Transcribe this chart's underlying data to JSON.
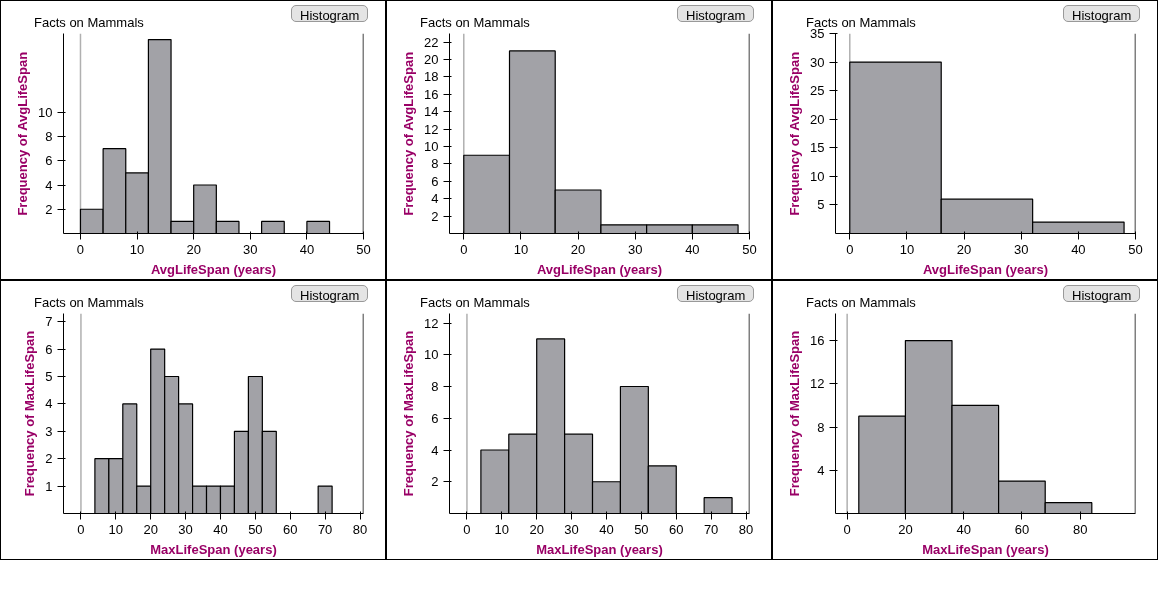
{
  "chart_data": [
    {
      "type": "histogram",
      "title": "Facts on Mammals",
      "xlabel": "AvgLifeSpan (years)",
      "ylabel": "Frequency of AvgLifeSpan",
      "annotations": [
        "Histogram"
      ],
      "color": "#a2a2a7",
      "bins": [
        0,
        4,
        8,
        12,
        16,
        20,
        24,
        28,
        32,
        36,
        40,
        44
      ],
      "values": [
        2,
        7,
        5,
        16,
        1,
        4,
        1,
        0,
        1,
        0,
        1
      ],
      "xlim": [
        -3,
        50
      ],
      "xticks": [
        0,
        10,
        20,
        30,
        40,
        50
      ],
      "ylim": [
        0,
        16.5
      ],
      "yticks": [
        2,
        4,
        6,
        8,
        10
      ],
      "ref_lines": [
        {
          "axis": "x",
          "value": 0,
          "color": "#b0b0b0"
        }
      ],
      "grid": false
    },
    {
      "type": "histogram",
      "title": "Facts on Mammals",
      "xlabel": "AvgLifeSpan (years)",
      "ylabel": "Frequency of AvgLifeSpan",
      "annotations": [
        "Histogram"
      ],
      "color": "#a2a2a7",
      "bins": [
        0,
        8,
        16,
        24,
        32,
        40,
        48
      ],
      "values": [
        9,
        21,
        5,
        1,
        1,
        1
      ],
      "xlim": [
        -2.5,
        50
      ],
      "xticks": [
        0,
        10,
        20,
        30,
        40,
        50
      ],
      "ylim": [
        0,
        23
      ],
      "yticks": [
        2,
        4,
        6,
        8,
        10,
        12,
        14,
        16,
        18,
        20,
        22
      ],
      "ref_lines": [
        {
          "axis": "x",
          "value": 0,
          "color": "#b0b0b0"
        }
      ],
      "grid": false
    },
    {
      "type": "histogram",
      "title": "Facts on Mammals",
      "xlabel": "AvgLifeSpan (years)",
      "ylabel": "Frequency of AvgLifeSpan",
      "annotations": [
        "Histogram"
      ],
      "color": "#a2a2a7",
      "bins": [
        0,
        16,
        32,
        48
      ],
      "values": [
        30,
        6,
        2
      ],
      "xlim": [
        -2.5,
        50
      ],
      "xticks": [
        0,
        10,
        20,
        30,
        40,
        50
      ],
      "ylim": [
        0,
        35
      ],
      "yticks": [
        5,
        10,
        15,
        20,
        25,
        30,
        35
      ],
      "ref_lines": [
        {
          "axis": "x",
          "value": 0,
          "color": "#b0b0b0"
        }
      ],
      "grid": false
    },
    {
      "type": "histogram",
      "title": "Facts on Mammals",
      "xlabel": "MaxLifeSpan (years)",
      "ylabel": "Frequency of MaxLifeSpan",
      "annotations": [
        "Histogram"
      ],
      "color": "#a2a2a7",
      "bins": [
        4,
        8,
        12,
        16,
        20,
        24,
        28,
        32,
        36,
        40,
        44,
        48,
        52,
        56,
        60,
        64,
        68,
        72
      ],
      "values": [
        2,
        2,
        4,
        1,
        6,
        5,
        4,
        1,
        1,
        1,
        3,
        5,
        3,
        0,
        0,
        0,
        1
      ],
      "xlim": [
        -5,
        81
      ],
      "xticks": [
        0,
        10,
        20,
        30,
        40,
        50,
        60,
        70,
        80
      ],
      "ylim": [
        0,
        7.3
      ],
      "yticks": [
        1,
        2,
        3,
        4,
        5,
        6,
        7
      ],
      "ref_lines": [
        {
          "axis": "x",
          "value": 0,
          "color": "#b0b0b0"
        }
      ],
      "grid": false
    },
    {
      "type": "histogram",
      "title": "Facts on Mammals",
      "xlabel": "MaxLifeSpan (years)",
      "ylabel": "Frequency of MaxLifeSpan",
      "annotations": [
        "Histogram"
      ],
      "color": "#a2a2a7",
      "bins": [
        4,
        12,
        20,
        28,
        36,
        44,
        52,
        60,
        68,
        76
      ],
      "values": [
        4,
        5,
        11,
        5,
        2,
        8,
        3,
        0,
        1
      ],
      "xlim": [
        -5,
        81
      ],
      "xticks": [
        0,
        10,
        20,
        30,
        40,
        50,
        60,
        70,
        80
      ],
      "ylim": [
        0,
        12.6
      ],
      "yticks": [
        2,
        4,
        6,
        8,
        10,
        12
      ],
      "ref_lines": [
        {
          "axis": "x",
          "value": 0,
          "color": "#b0b0b0"
        }
      ],
      "grid": false
    },
    {
      "type": "histogram",
      "title": "Facts on Mammals",
      "xlabel": "MaxLifeSpan (years)",
      "ylabel": "Frequency of MaxLifeSpan",
      "annotations": [
        "Histogram"
      ],
      "color": "#a2a2a7",
      "bins": [
        4,
        20,
        36,
        52,
        68,
        84
      ],
      "values": [
        9,
        16,
        10,
        3,
        1
      ],
      "xlim": [
        -4,
        99
      ],
      "xticks": [
        0,
        20,
        40,
        60,
        80
      ],
      "ylim": [
        0,
        18.5
      ],
      "yticks": [
        4,
        8,
        12,
        16
      ],
      "ref_lines": [
        {
          "axis": "x",
          "value": 0,
          "color": "#b0b0b0"
        }
      ],
      "grid": false
    }
  ]
}
